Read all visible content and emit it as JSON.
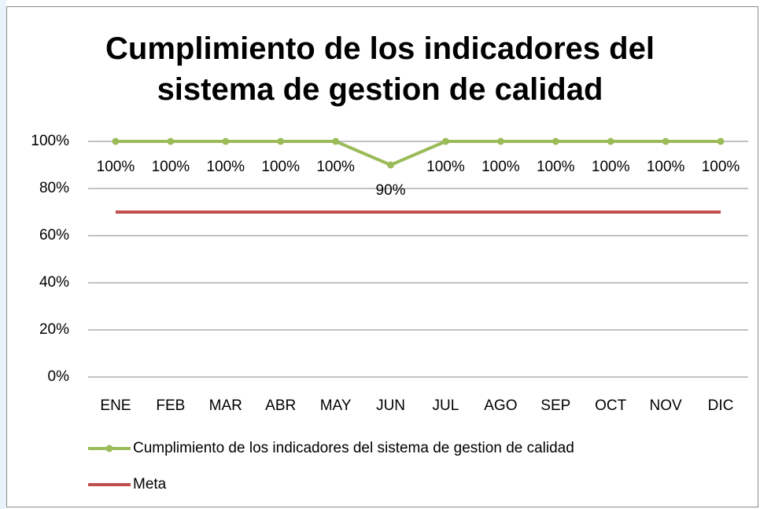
{
  "chart_data": {
    "type": "line",
    "title": "Cumplimiento de los indicadores del sistema de gestion de calidad",
    "categories": [
      "ENE",
      "FEB",
      "MAR",
      "ABR",
      "MAY",
      "JUN",
      "JUL",
      "AGO",
      "SEP",
      "OCT",
      "NOV",
      "DIC"
    ],
    "series": [
      {
        "name": "Cumplimiento de los indicadores del sistema de gestion de calidad",
        "color": "#9bbb59",
        "marker": true,
        "values": [
          100,
          100,
          100,
          100,
          100,
          90,
          100,
          100,
          100,
          100,
          100,
          100
        ],
        "value_labels": [
          "100%",
          "100%",
          "100%",
          "100%",
          "100%",
          "90%",
          "100%",
          "100%",
          "100%",
          "100%",
          "100%",
          "100%"
        ]
      },
      {
        "name": "Meta",
        "color": "#c0504d",
        "marker": false,
        "values": [
          70,
          70,
          70,
          70,
          70,
          70,
          70,
          70,
          70,
          70,
          70,
          70
        ]
      }
    ],
    "ylim": [
      0,
      100
    ],
    "yticks": [
      {
        "value": 0,
        "label": "0%"
      },
      {
        "value": 20,
        "label": "20%"
      },
      {
        "value": 40,
        "label": "40%"
      },
      {
        "value": 60,
        "label": "60%"
      },
      {
        "value": 80,
        "label": "80%"
      },
      {
        "value": 100,
        "label": "100%"
      }
    ],
    "grid": true,
    "legend": "bottom"
  }
}
